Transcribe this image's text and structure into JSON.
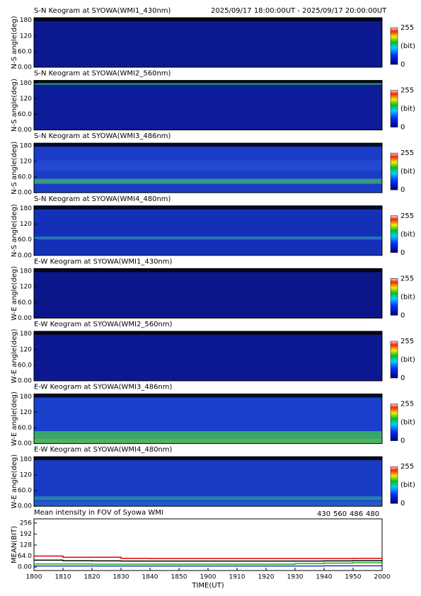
{
  "header": {
    "time_range": "2025/09/17 18:00:00UT - 2025/09/17 20:00:00UT"
  },
  "panels": [
    {
      "title": "S-N Keogram at SYOWA(WMI1_430nm)",
      "ylabel": "N-S angle(deg)"
    },
    {
      "title": "S-N Keogram at SYOWA(WMI2_560nm)",
      "ylabel": "N-S angle(deg)"
    },
    {
      "title": "S-N Keogram at SYOWA(WMI3_486nm)",
      "ylabel": "N-S angle(deg)"
    },
    {
      "title": "S-N Keogram at SYOWA(WMI4_480nm)",
      "ylabel": "N-S angle(deg)"
    },
    {
      "title": "E-W Keogram at SYOWA(WMI1_430nm)",
      "ylabel": "W-E angle(deg)"
    },
    {
      "title": "E-W Keogram at SYOWA(WMI2_560nm)",
      "ylabel": "W-E angle(deg)"
    },
    {
      "title": "E-W Keogram at SYOWA(WMI3_486nm)",
      "ylabel": "W-E angle(deg)"
    },
    {
      "title": "E-W Keogram at SYOWA(WMI4_480nm)",
      "ylabel": "W-E angle(deg)"
    }
  ],
  "panel_ylim": [
    0,
    190
  ],
  "panel_yticks": [
    {
      "value": 0,
      "label": "0.00"
    },
    {
      "value": 60,
      "label": "60.0"
    },
    120,
    180
  ],
  "colorbar": {
    "lim": [
      0,
      255
    ],
    "ticks": [
      0,
      255
    ],
    "label": "(bit)"
  },
  "chart_data": {
    "type": "line",
    "title": "Mean intensity in FOV of Syowa WMI",
    "xlabel": "TIME(UT)",
    "ylabel": "MEAN(BIT)",
    "x": [
      0,
      10,
      20,
      30,
      40,
      50,
      60,
      70,
      80,
      90,
      100,
      110,
      120
    ],
    "xlim": [
      0,
      120
    ],
    "xticks": [
      {
        "value": 0,
        "label": "1800"
      },
      {
        "value": 10,
        "label": "1810"
      },
      {
        "value": 20,
        "label": "1820"
      },
      {
        "value": 30,
        "label": "1830"
      },
      {
        "value": 40,
        "label": "1840"
      },
      {
        "value": 50,
        "label": "1850"
      },
      {
        "value": 60,
        "label": "1900"
      },
      {
        "value": 70,
        "label": "1910"
      },
      {
        "value": 80,
        "label": "1920"
      },
      {
        "value": 90,
        "label": "1930"
      },
      {
        "value": 100,
        "label": "1940"
      },
      {
        "value": 110,
        "label": "1950"
      },
      {
        "value": 120,
        "label": "2000"
      }
    ],
    "ylim": [
      -20,
      280
    ],
    "yticks": [
      {
        "value": 0,
        "label": "0.00"
      },
      {
        "value": 64,
        "label": "64.0"
      },
      128,
      192,
      256
    ],
    "series": [
      {
        "name": "430",
        "color": "#2030c0",
        "values": [
          6,
          6,
          6,
          6,
          6,
          6,
          6,
          6,
          6,
          6,
          7,
          7,
          8
        ]
      },
      {
        "name": "560",
        "color": "#10b020",
        "values": [
          18,
          18,
          17,
          17,
          17,
          17,
          17,
          17,
          17,
          20,
          23,
          25,
          26
        ]
      },
      {
        "name": "486",
        "color": "#e00000",
        "values": [
          64,
          57,
          57,
          51,
          50,
          50,
          50,
          50,
          50,
          50,
          50,
          51,
          52
        ]
      },
      {
        "name": "480",
        "color": "#000000",
        "values": [
          40,
          37,
          36,
          35,
          35,
          35,
          35,
          35,
          35,
          35,
          36,
          37,
          38
        ]
      }
    ]
  }
}
